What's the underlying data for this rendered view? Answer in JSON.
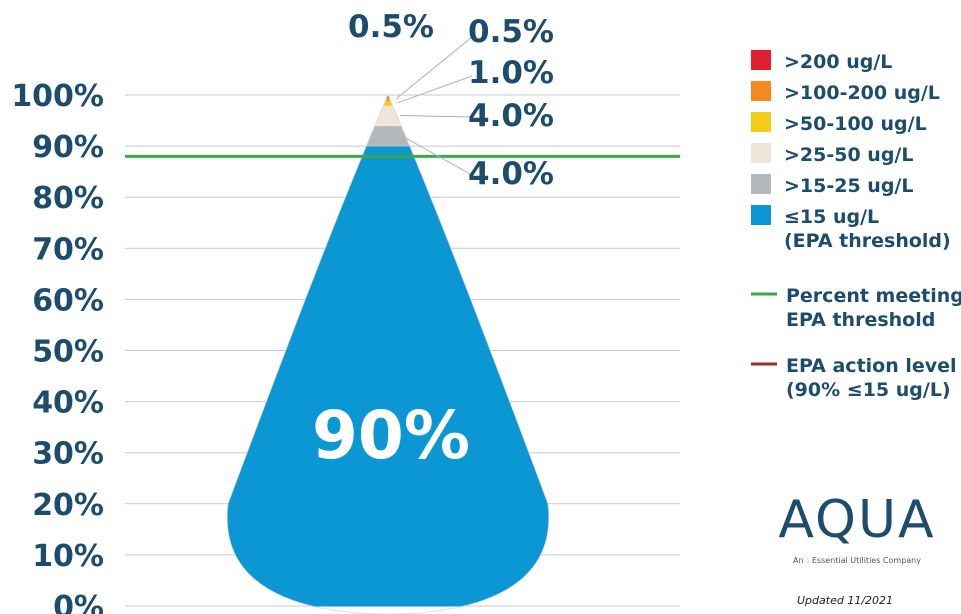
{
  "chart_data": {
    "type": "pie",
    "y_ticks": [
      "0%",
      "10%",
      "20%",
      "30%",
      "40%",
      "50%",
      "60%",
      "70%",
      "80%",
      "90%",
      "100%"
    ],
    "ylim": [
      0,
      100
    ],
    "grid": true,
    "center_label": "90%",
    "segments": [
      {
        "name": "≤15 ug/L (EPA threshold)",
        "value": 90.0,
        "color": "#0a97d3"
      },
      {
        "name": ">15-25 ug/L",
        "value": 4.0,
        "label": "4.0%",
        "color": "#b5b8bb"
      },
      {
        "name": ">25-50 ug/L",
        "value": 4.0,
        "label": "4.0%",
        "color": "#efe5da"
      },
      {
        "name": ">50-100 ug/L",
        "value": 1.0,
        "label": "1.0%",
        "color": "#f3cc1a"
      },
      {
        "name": ">100-200 ug/L",
        "value": 0.5,
        "label": "0.5%",
        "color": "#f28a1f"
      },
      {
        "name": ">200 ug/L",
        "value": 0.5,
        "label": "0.5%",
        "color": "#e21f2f"
      }
    ],
    "reference_lines": [
      {
        "name": "Percent meeting EPA threshold",
        "color": "#3aaa49"
      },
      {
        "name": "EPA action level (90% ≤15 ug/L)",
        "color": "#9e2a2a"
      }
    ],
    "legend": {
      "placement": "right",
      "entries": [
        {
          "label": ">200 ug/L",
          "kind": "box",
          "color": "#e21f2f"
        },
        {
          "label": ">100-200 ug/L",
          "kind": "box",
          "color": "#f28a1f"
        },
        {
          "label": ">50-100 ug/L",
          "kind": "box",
          "color": "#f3cc1a"
        },
        {
          "label": ">25-50 ug/L",
          "kind": "box",
          "color": "#efe5da"
        },
        {
          "label": ">15-25 ug/L",
          "kind": "box",
          "color": "#b5b8bb"
        },
        {
          "label": "≤15 ug/L",
          "label2": "(EPA threshold)",
          "kind": "box",
          "color": "#0a97d3"
        },
        {
          "label": "Percent meeting",
          "label2": "EPA threshold",
          "kind": "line",
          "color": "#3aaa49"
        },
        {
          "label": "EPA action level",
          "label2": "(90% ≤15 ug/L)",
          "kind": "line",
          "color": "#9e2a2a"
        }
      ]
    }
  },
  "branding": {
    "logo_word": "AQUA",
    "tagline_prefix": "An",
    "tagline_mark": "Essential",
    "tagline_suffix": "Utilities Company",
    "updated": "Updated 11/2021"
  },
  "colors": {
    "text": "#1d4d6b",
    "grid": "#c9c9c9"
  }
}
